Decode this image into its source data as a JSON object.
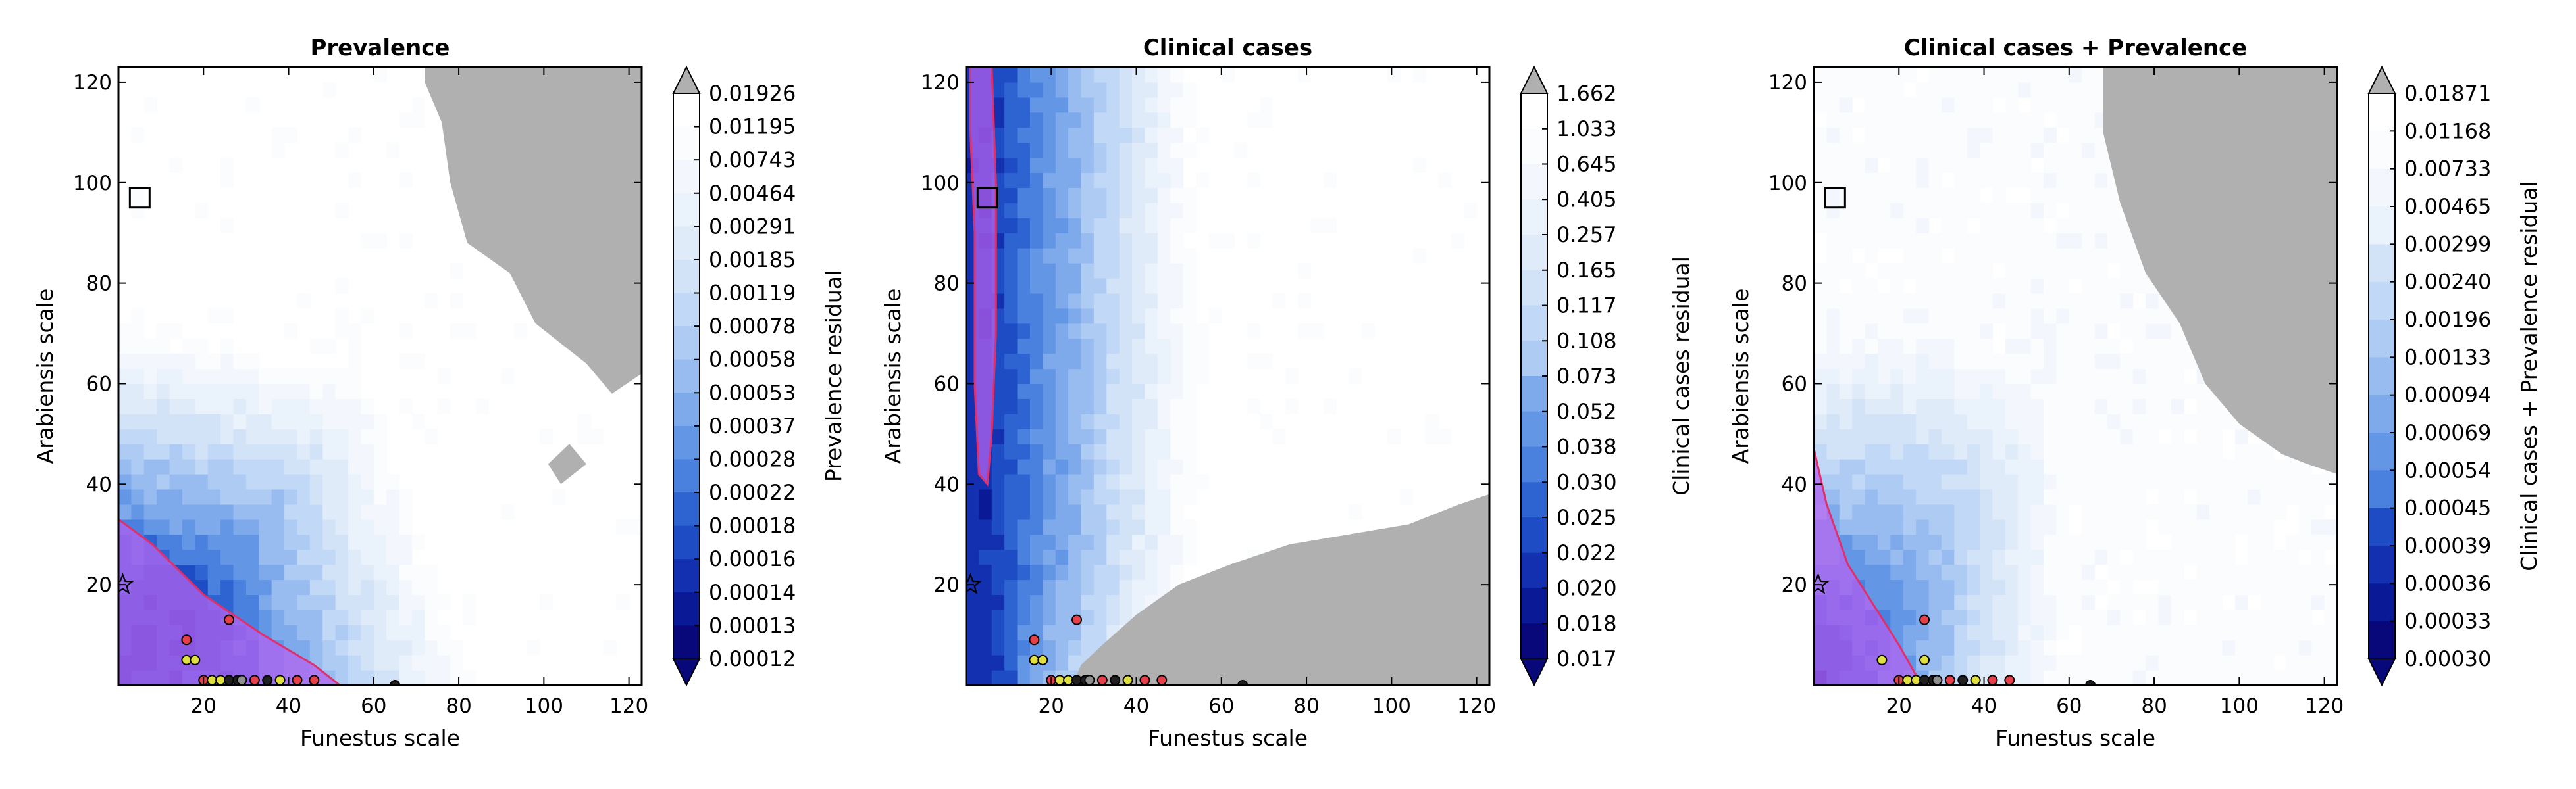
{
  "colors": {
    "background": "#ffffff",
    "excluded_region": "#b0b0b0",
    "good_region_fill": "#b464f0",
    "good_region_edge": "#e0306c",
    "colormap": [
      "#08087a",
      "#0a1a96",
      "#1230b0",
      "#1e4cc4",
      "#2e64d2",
      "#4a80de",
      "#6496e6",
      "#7eaaec",
      "#98bcf0",
      "#aecbf3",
      "#c1d8f6",
      "#d2e3f8",
      "#e0ebfa",
      "#eaf2fc",
      "#f3f7fd",
      "#fafcfe",
      "#ffffff"
    ],
    "point_colors": {
      "red": "#e8404a",
      "yellow": "#e0e040",
      "gray": "#909090",
      "black": "#202020"
    }
  },
  "chart_data": [
    {
      "type": "heatmap",
      "title": "Prevalence",
      "xlabel": "Funestus scale",
      "ylabel": "Arabiensis scale",
      "xlim": [
        0,
        123
      ],
      "ylim": [
        0,
        123
      ],
      "xticks": [
        20,
        40,
        60,
        80,
        100,
        120
      ],
      "yticks": [
        20,
        40,
        60,
        80,
        100,
        120
      ],
      "colorbar": {
        "label": "Prevalence residual",
        "extend": "both",
        "ticks": [
          "0.01926",
          "0.01195",
          "0.00743",
          "0.00464",
          "0.00291",
          "0.00185",
          "0.00119",
          "0.00078",
          "0.00058",
          "0.00053",
          "0.00037",
          "0.00028",
          "0.00022",
          "0.00018",
          "0.00016",
          "0.00014",
          "0.00013",
          "0.00012"
        ]
      },
      "minimum_marker": {
        "shape": "star",
        "x": 1,
        "y": 20
      },
      "square_marker": {
        "x": 5,
        "y": 97
      },
      "low_residual_regions": [
        {
          "name": "residual minimum basin",
          "polygon": [
            [
              0,
              33
            ],
            [
              8,
              28
            ],
            [
              20,
              18
            ],
            [
              34,
              10
            ],
            [
              46,
              4
            ],
            [
              52,
              0
            ],
            [
              0,
              0
            ]
          ]
        }
      ],
      "excluded_regions": [
        {
          "polygon": [
            [
              72,
              123
            ],
            [
              123,
              123
            ],
            [
              123,
              62
            ],
            [
              116,
              58
            ],
            [
              110,
              64
            ],
            [
              104,
              68
            ],
            [
              98,
              72
            ],
            [
              92,
              82
            ],
            [
              82,
              88
            ],
            [
              78,
              100
            ],
            [
              76,
              112
            ],
            [
              72,
              120
            ]
          ]
        },
        {
          "polygon": [
            [
              104,
              40
            ],
            [
              110,
              44
            ],
            [
              106,
              48
            ],
            [
              101,
              44
            ]
          ]
        }
      ],
      "best_fit_points": [
        {
          "x": 16,
          "y": 9,
          "color": "red"
        },
        {
          "x": 16,
          "y": 5,
          "color": "yellow"
        },
        {
          "x": 18,
          "y": 5,
          "color": "yellow"
        },
        {
          "x": 26,
          "y": 13,
          "color": "red"
        },
        {
          "x": 20,
          "y": 1,
          "color": "red"
        },
        {
          "x": 22,
          "y": 1,
          "color": "yellow"
        },
        {
          "x": 24,
          "y": 1,
          "color": "yellow"
        },
        {
          "x": 26,
          "y": 1,
          "color": "black"
        },
        {
          "x": 28,
          "y": 1,
          "color": "black"
        },
        {
          "x": 29,
          "y": 1,
          "color": "gray"
        },
        {
          "x": 32,
          "y": 1,
          "color": "red"
        },
        {
          "x": 35,
          "y": 1,
          "color": "black"
        },
        {
          "x": 38,
          "y": 1,
          "color": "yellow"
        },
        {
          "x": 42,
          "y": 1,
          "color": "red"
        },
        {
          "x": 46,
          "y": 1,
          "color": "red"
        },
        {
          "x": 65,
          "y": 0,
          "color": "black"
        }
      ]
    },
    {
      "type": "heatmap",
      "title": "Clinical cases",
      "xlabel": "Funestus scale",
      "ylabel": "Arabiensis scale",
      "xlim": [
        0,
        123
      ],
      "ylim": [
        0,
        123
      ],
      "xticks": [
        20,
        40,
        60,
        80,
        100,
        120
      ],
      "yticks": [
        20,
        40,
        60,
        80,
        100,
        120
      ],
      "colorbar": {
        "label": "Clinical cases residual",
        "extend": "both",
        "ticks": [
          "1.662",
          "1.033",
          "0.645",
          "0.405",
          "0.257",
          "0.165",
          "0.117",
          "0.108",
          "0.073",
          "0.052",
          "0.038",
          "0.030",
          "0.025",
          "0.022",
          "0.020",
          "0.018",
          "0.017"
        ]
      },
      "minimum_marker": {
        "shape": "star",
        "x": 1,
        "y": 20
      },
      "square_marker": {
        "x": 5,
        "y": 97
      },
      "low_residual_regions": [
        {
          "name": "residual minimum basin",
          "polygon": [
            [
              1,
              123
            ],
            [
              6,
              123
            ],
            [
              7,
              100
            ],
            [
              7,
              70
            ],
            [
              6,
              50
            ],
            [
              5,
              40
            ],
            [
              3,
              42
            ],
            [
              2,
              60
            ],
            [
              2,
              90
            ],
            [
              1,
              110
            ]
          ]
        }
      ],
      "excluded_regions": [
        {
          "polygon": [
            [
              25,
              0
            ],
            [
              123,
              0
            ],
            [
              123,
              38
            ],
            [
              116,
              36
            ],
            [
              104,
              32
            ],
            [
              90,
              30
            ],
            [
              76,
              28
            ],
            [
              62,
              24
            ],
            [
              50,
              20
            ],
            [
              40,
              14
            ],
            [
              32,
              8
            ],
            [
              27,
              4
            ]
          ]
        }
      ],
      "best_fit_points": [
        {
          "x": 16,
          "y": 9,
          "color": "red"
        },
        {
          "x": 16,
          "y": 5,
          "color": "yellow"
        },
        {
          "x": 18,
          "y": 5,
          "color": "yellow"
        },
        {
          "x": 26,
          "y": 13,
          "color": "red"
        },
        {
          "x": 20,
          "y": 1,
          "color": "red"
        },
        {
          "x": 22,
          "y": 1,
          "color": "yellow"
        },
        {
          "x": 24,
          "y": 1,
          "color": "yellow"
        },
        {
          "x": 26,
          "y": 1,
          "color": "black"
        },
        {
          "x": 28,
          "y": 1,
          "color": "black"
        },
        {
          "x": 29,
          "y": 1,
          "color": "gray"
        },
        {
          "x": 32,
          "y": 1,
          "color": "red"
        },
        {
          "x": 35,
          "y": 1,
          "color": "black"
        },
        {
          "x": 38,
          "y": 1,
          "color": "yellow"
        },
        {
          "x": 42,
          "y": 1,
          "color": "red"
        },
        {
          "x": 46,
          "y": 1,
          "color": "red"
        },
        {
          "x": 65,
          "y": 0,
          "color": "black"
        }
      ]
    },
    {
      "type": "heatmap",
      "title": "Clinical cases + Prevalence",
      "xlabel": "Funestus scale",
      "ylabel": "Arabiensis scale",
      "xlim": [
        0,
        123
      ],
      "ylim": [
        0,
        123
      ],
      "xticks": [
        20,
        40,
        60,
        80,
        100,
        120
      ],
      "yticks": [
        20,
        40,
        60,
        80,
        100,
        120
      ],
      "colorbar": {
        "label": "Clinical cases + Prevalence residual",
        "extend": "both",
        "ticks": [
          "0.01871",
          "0.01168",
          "0.00733",
          "0.00465",
          "0.00299",
          "0.00240",
          "0.00196",
          "0.00133",
          "0.00094",
          "0.00069",
          "0.00054",
          "0.00045",
          "0.00039",
          "0.00036",
          "0.00033",
          "0.00030"
        ]
      },
      "minimum_marker": {
        "shape": "star",
        "x": 1,
        "y": 20
      },
      "square_marker": {
        "x": 5,
        "y": 97
      },
      "low_residual_regions": [
        {
          "name": "residual minimum basin",
          "polygon": [
            [
              0,
              47
            ],
            [
              3,
              36
            ],
            [
              8,
              24
            ],
            [
              14,
              16
            ],
            [
              20,
              8
            ],
            [
              24,
              2
            ],
            [
              22,
              0
            ],
            [
              0,
              0
            ]
          ]
        }
      ],
      "excluded_regions": [
        {
          "polygon": [
            [
              68,
              123
            ],
            [
              123,
              123
            ],
            [
              123,
              42
            ],
            [
              116,
              44
            ],
            [
              110,
              46
            ],
            [
              100,
              52
            ],
            [
              92,
              60
            ],
            [
              86,
              72
            ],
            [
              78,
              82
            ],
            [
              72,
              96
            ],
            [
              68,
              110
            ]
          ]
        }
      ],
      "best_fit_points": [
        {
          "x": 16,
          "y": 5,
          "color": "yellow"
        },
        {
          "x": 26,
          "y": 13,
          "color": "red"
        },
        {
          "x": 26,
          "y": 5,
          "color": "yellow"
        },
        {
          "x": 20,
          "y": 1,
          "color": "red"
        },
        {
          "x": 22,
          "y": 1,
          "color": "yellow"
        },
        {
          "x": 24,
          "y": 1,
          "color": "yellow"
        },
        {
          "x": 26,
          "y": 1,
          "color": "black"
        },
        {
          "x": 28,
          "y": 1,
          "color": "black"
        },
        {
          "x": 29,
          "y": 1,
          "color": "gray"
        },
        {
          "x": 32,
          "y": 1,
          "color": "red"
        },
        {
          "x": 35,
          "y": 1,
          "color": "black"
        },
        {
          "x": 38,
          "y": 1,
          "color": "yellow"
        },
        {
          "x": 42,
          "y": 1,
          "color": "red"
        },
        {
          "x": 46,
          "y": 1,
          "color": "red"
        },
        {
          "x": 65,
          "y": 0,
          "color": "black"
        }
      ]
    }
  ]
}
